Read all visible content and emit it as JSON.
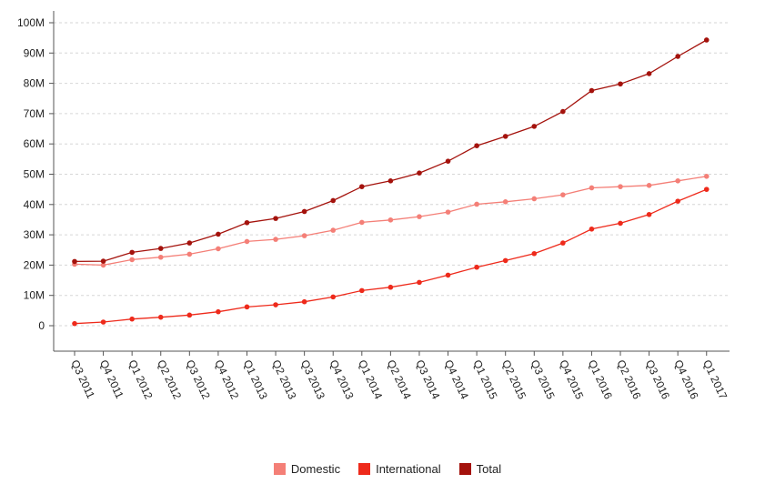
{
  "chart_data": {
    "type": "line",
    "categories": [
      "Q3 2011",
      "Q4 2011",
      "Q1 2012",
      "Q2 2012",
      "Q3 2012",
      "Q4 2012",
      "Q1 2013",
      "Q2 2013",
      "Q3 2013",
      "Q4 2013",
      "Q1 2014",
      "Q2 2014",
      "Q3 2014",
      "Q4 2014",
      "Q1 2015",
      "Q2 2015",
      "Q3 2015",
      "Q4 2015",
      "Q1 2016",
      "Q2 2016",
      "Q3 2016",
      "Q4 2016",
      "Q1 2017"
    ],
    "series": [
      {
        "name": "Domestic",
        "color": "#f47f77",
        "values": [
          20.3,
          20.0,
          21.8,
          22.6,
          23.6,
          25.4,
          27.8,
          28.5,
          29.7,
          31.5,
          34.1,
          34.9,
          36.0,
          37.5,
          40.1,
          40.9,
          41.9,
          43.2,
          45.5,
          45.9,
          46.3,
          47.8,
          49.3
        ]
      },
      {
        "name": "International",
        "color": "#ee2a1b",
        "values": [
          0.7,
          1.2,
          2.2,
          2.8,
          3.5,
          4.6,
          6.2,
          6.9,
          7.9,
          9.5,
          11.6,
          12.7,
          14.3,
          16.7,
          19.3,
          21.5,
          23.8,
          27.3,
          31.9,
          33.8,
          36.7,
          41.1,
          45.0
        ]
      },
      {
        "name": "Total",
        "color": "#a4120c",
        "values": [
          21.2,
          21.3,
          24.2,
          25.5,
          27.3,
          30.2,
          34.0,
          35.4,
          37.7,
          41.3,
          45.9,
          47.8,
          50.4,
          54.3,
          59.4,
          62.5,
          65.8,
          70.7,
          77.6,
          79.8,
          83.2,
          88.9,
          94.3
        ]
      }
    ],
    "y_ticks": [
      "0",
      "10M",
      "20M",
      "30M",
      "40M",
      "50M",
      "60M",
      "70M",
      "80M",
      "90M",
      "100M"
    ],
    "ylim": [
      0,
      100
    ],
    "grid": true,
    "legend_position": "bottom-center",
    "title": "",
    "xlabel": "",
    "ylabel": ""
  }
}
